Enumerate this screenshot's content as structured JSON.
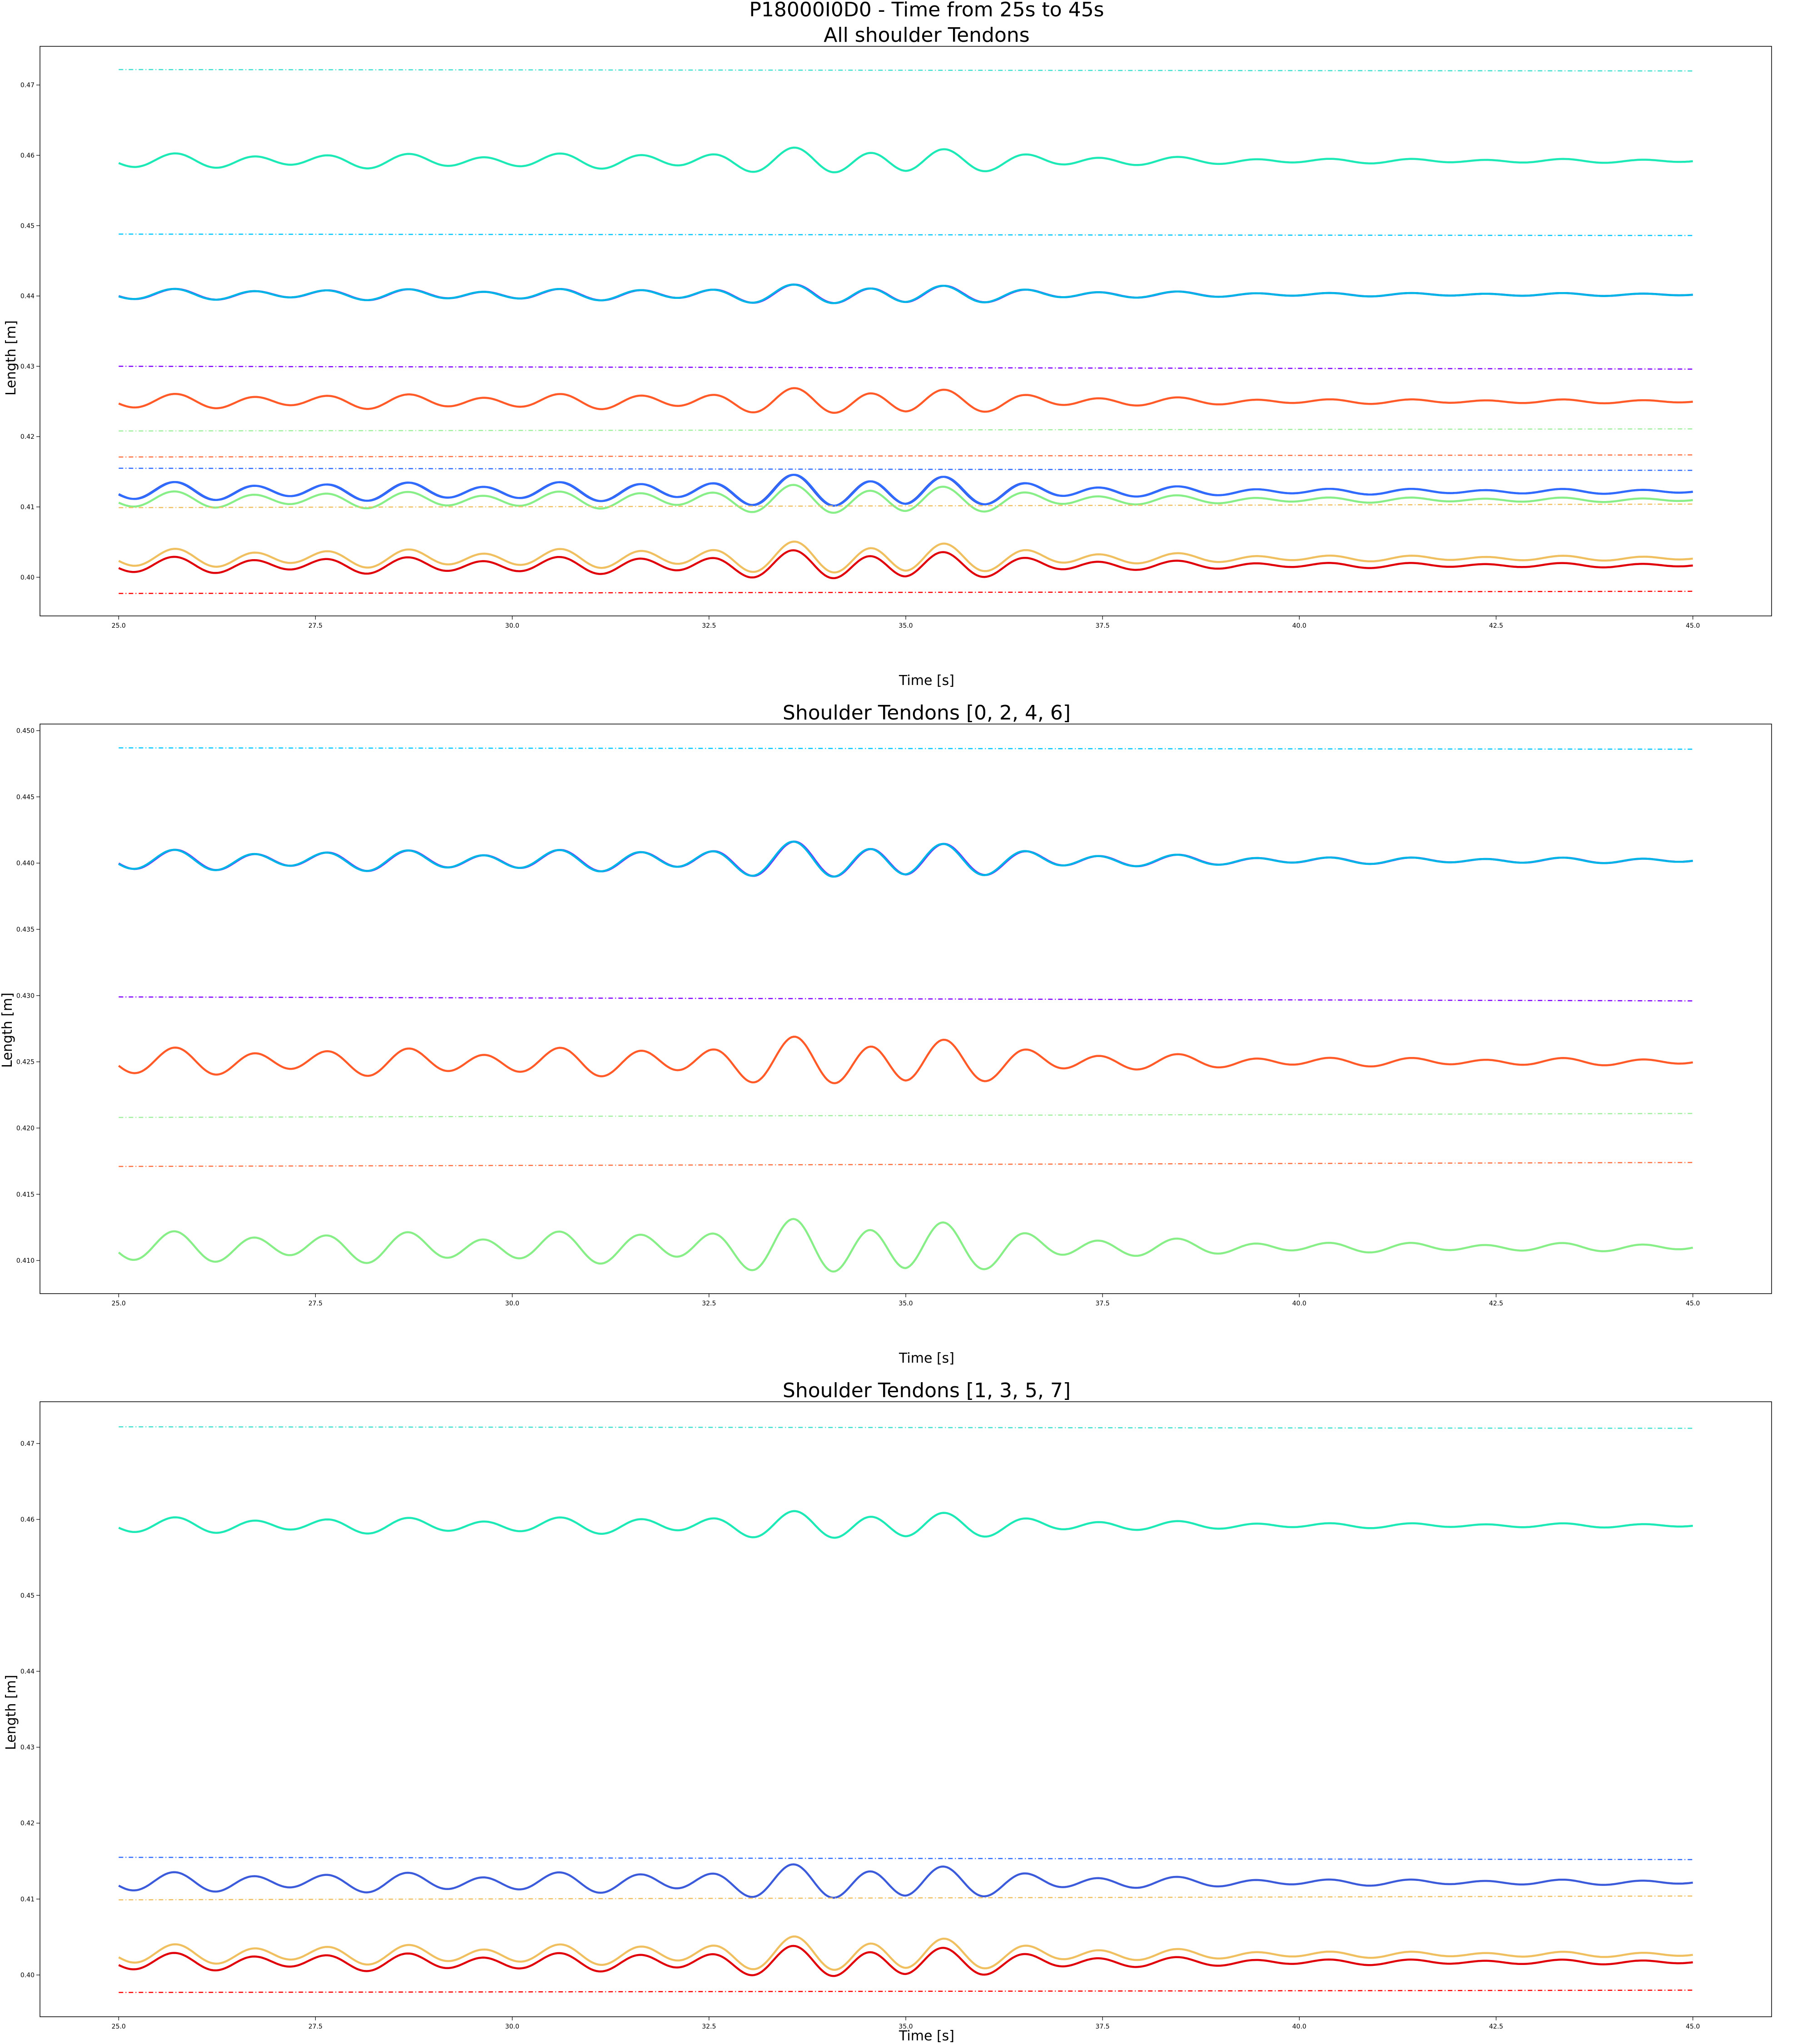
{
  "figure": {
    "suptitle": "P18000I0D0 - Time from 25s to 45s"
  },
  "chart_data": [
    {
      "type": "line",
      "title": "All shoulder Tendons",
      "xlabel": "Time [s]",
      "ylabel": "Length [m]",
      "xlim": [
        24.0,
        46.0
      ],
      "ylim": [
        0.3945,
        0.4755
      ],
      "xticks": [
        25.0,
        27.5,
        30.0,
        32.5,
        35.0,
        37.5,
        40.0,
        42.5,
        45.0
      ],
      "xtick_labels": [
        "25.0",
        "27.5",
        "30.0",
        "32.5",
        "35.0",
        "37.5",
        "40.0",
        "42.5",
        "45.0"
      ],
      "yticks": [
        0.4,
        0.41,
        0.42,
        0.43,
        0.44,
        0.45,
        0.46,
        0.47
      ],
      "ytick_labels": [
        "0.40",
        "0.41",
        "0.42",
        "0.43",
        "0.44",
        "0.45",
        "0.46",
        "0.47"
      ],
      "grid": false,
      "series": [
        {
          "color": "#1de9b6",
          "style": "solid",
          "tendon": 1
        },
        {
          "color": "#3b5bdb",
          "style": "solid",
          "tendon": 3
        },
        {
          "color": "#f0c060",
          "style": "solid",
          "tendon": 5
        },
        {
          "color": "#e0000a",
          "style": "solid",
          "tendon": 7
        },
        {
          "color": "#6a28ff",
          "style": "solid",
          "tendon": 0
        },
        {
          "color": "#00b4e6",
          "style": "solid",
          "tendon": 0
        },
        {
          "color": "#ff5a28",
          "style": "solid",
          "tendon": 4
        },
        {
          "color": "#88ee88",
          "style": "solid",
          "tendon": 6
        },
        {
          "color": "#2f6bff",
          "style": "solid",
          "tendon": 2
        },
        {
          "color": "#40e0d0",
          "style": "dashdot",
          "start": 0.4722,
          "end": 0.472
        },
        {
          "color": "#00c8ff",
          "style": "dashdot",
          "start": 0.4488,
          "end": 0.4486
        },
        {
          "color": "#8000ff",
          "style": "dashdot",
          "start": 0.43,
          "end": 0.4296
        },
        {
          "color": "#a0f0a0",
          "style": "dashdot",
          "start": 0.4208,
          "end": 0.4211
        },
        {
          "color": "#ff7040",
          "style": "dashdot",
          "start": 0.4171,
          "end": 0.4174
        },
        {
          "color": "#2f6bff",
          "style": "dashdot",
          "start": 0.4155,
          "end": 0.4152
        },
        {
          "color": "#f0c060",
          "style": "dashdot",
          "start": 0.4099,
          "end": 0.4104
        },
        {
          "color": "#ff0000",
          "style": "dashdot",
          "start": 0.3977,
          "end": 0.398
        }
      ]
    },
    {
      "type": "line",
      "title": "Shoulder Tendons [0, 2, 4, 6]",
      "xlabel": "Time [s]",
      "ylabel": "Length [m]",
      "xlim": [
        24.0,
        46.0
      ],
      "ylim": [
        0.4075,
        0.4505
      ],
      "xticks": [
        25.0,
        27.5,
        30.0,
        32.5,
        35.0,
        37.5,
        40.0,
        42.5,
        45.0
      ],
      "xtick_labels": [
        "25.0",
        "27.5",
        "30.0",
        "32.5",
        "35.0",
        "37.5",
        "40.0",
        "42.5",
        "45.0"
      ],
      "yticks": [
        0.41,
        0.415,
        0.42,
        0.425,
        0.43,
        0.435,
        0.44,
        0.445,
        0.45
      ],
      "ytick_labels": [
        "0.410",
        "0.415",
        "0.420",
        "0.425",
        "0.430",
        "0.435",
        "0.440",
        "0.445",
        "0.450"
      ],
      "grid": false,
      "series": [
        {
          "color": "#6a28ff",
          "style": "solid",
          "tendon": 0
        },
        {
          "color": "#00b4e6",
          "style": "solid",
          "tendon": 0
        },
        {
          "color": "#ff5a28",
          "style": "solid",
          "tendon": 4
        },
        {
          "color": "#88ee88",
          "style": "solid",
          "tendon": 6
        },
        {
          "color": "#00c8ff",
          "style": "dashdot",
          "start": 0.4487,
          "end": 0.4486
        },
        {
          "color": "#8000ff",
          "style": "dashdot",
          "start": 0.4299,
          "end": 0.4296
        },
        {
          "color": "#a0f0a0",
          "style": "dashdot",
          "start": 0.4208,
          "end": 0.4211
        },
        {
          "color": "#ff7040",
          "style": "dashdot",
          "start": 0.4171,
          "end": 0.4174
        }
      ]
    },
    {
      "type": "line",
      "title": "Shoulder Tendons  [1, 3, 5, 7]",
      "xlabel": "Time [s]",
      "ylabel": "Length [m]",
      "xlim": [
        24.0,
        46.0
      ],
      "ylim": [
        0.3945,
        0.4755
      ],
      "xticks": [
        25.0,
        27.5,
        30.0,
        32.5,
        35.0,
        37.5,
        40.0,
        42.5,
        45.0
      ],
      "xtick_labels": [
        "25.0",
        "27.5",
        "30.0",
        "32.5",
        "35.0",
        "37.5",
        "40.0",
        "42.5",
        "45.0"
      ],
      "yticks": [
        0.4,
        0.41,
        0.42,
        0.43,
        0.44,
        0.45,
        0.46,
        0.47
      ],
      "ytick_labels": [
        "0.40",
        "0.41",
        "0.42",
        "0.43",
        "0.44",
        "0.45",
        "0.46",
        "0.47"
      ],
      "grid": false,
      "series": [
        {
          "color": "#1de9b6",
          "style": "solid",
          "tendon": 1
        },
        {
          "color": "#3b5bdb",
          "style": "solid",
          "tendon": 3
        },
        {
          "color": "#f0c060",
          "style": "solid",
          "tendon": 5
        },
        {
          "color": "#e0000a",
          "style": "solid",
          "tendon": 7
        },
        {
          "color": "#40e0d0",
          "style": "dashdot",
          "start": 0.4722,
          "end": 0.472
        },
        {
          "color": "#2f6bff",
          "style": "dashdot",
          "start": 0.4155,
          "end": 0.4152
        },
        {
          "color": "#f0c060",
          "style": "dashdot",
          "start": 0.4099,
          "end": 0.4104
        },
        {
          "color": "#ff0000",
          "style": "dashdot",
          "start": 0.3977,
          "end": 0.398
        }
      ]
    }
  ]
}
